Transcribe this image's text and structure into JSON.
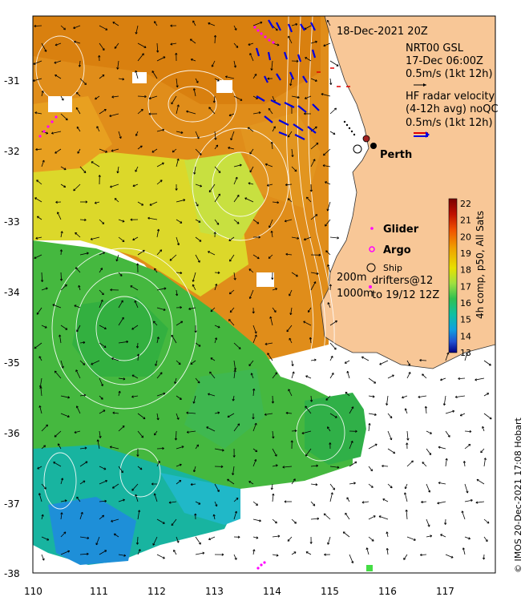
{
  "map": {
    "title_date": "18-Dec-2021 20Z",
    "gsl": {
      "line1": "NRT00 GSL",
      "line2": "17-Dec 06:00Z",
      "line3": "0.5m/s (1kt 12h)"
    },
    "hf_radar": {
      "line1": "HF radar velocity",
      "line2": "(4-12h avg) noQC",
      "line3": "0.5m/s (1kt 12h)"
    },
    "city": "Perth",
    "legend": {
      "glider": "Glider",
      "argo": "Argo",
      "ship": "Ship",
      "drifters_line1": "drifters@12",
      "drifters_line2": "to 19/12 12Z"
    },
    "depths": {
      "d200": "200m",
      "d1000": "1000m"
    },
    "colorbar": {
      "title": "4h comp, p50, All Sats",
      "min": 13,
      "max": 22,
      "ticks": [
        "22",
        "21",
        "20",
        "19",
        "18",
        "17",
        "16",
        "15",
        "14",
        "13"
      ],
      "colors": [
        "#800000",
        "#c80000",
        "#ff4400",
        "#ff9900",
        "#ffcc00",
        "#e8f020",
        "#a0e040",
        "#40c040",
        "#10c090",
        "#10b0d0",
        "#2070e0",
        "#1030b0",
        "#000080"
      ]
    },
    "x_ticks": [
      "110",
      "111",
      "112",
      "113",
      "114",
      "115",
      "116",
      "117"
    ],
    "y_ticks": [
      "-31",
      "-32",
      "-33",
      "-34",
      "-35",
      "-36",
      "-37",
      "-38"
    ],
    "credit": "© IMOS 20-Dec-2021 17:08 Hobart",
    "colors": {
      "land": "#f8c797",
      "warm": "#e0901c",
      "mid": "#d8e020",
      "cool": "#30b040",
      "cold": "#2080d0",
      "vector": "#000000",
      "radar": "#0000e0"
    }
  }
}
